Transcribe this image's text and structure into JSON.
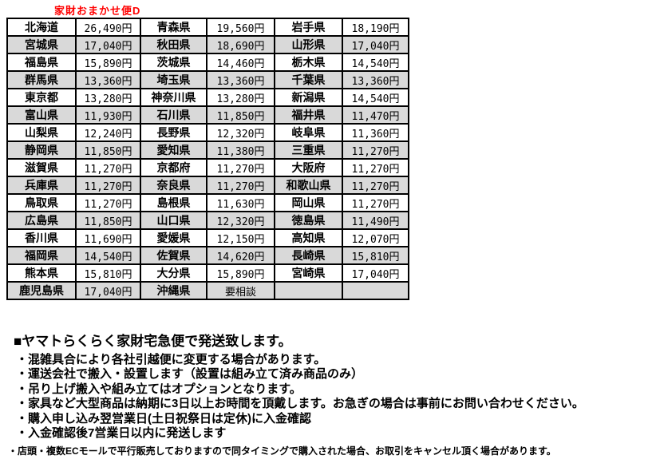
{
  "title": "家財おまかせ便D",
  "table": {
    "rows": [
      [
        "北海道",
        "26,490円",
        "青森県",
        "19,560円",
        "岩手県",
        "18,190円"
      ],
      [
        "宮城県",
        "17,040円",
        "秋田県",
        "18,690円",
        "山形県",
        "17,040円"
      ],
      [
        "福島県",
        "15,890円",
        "茨城県",
        "14,460円",
        "栃木県",
        "14,540円"
      ],
      [
        "群馬県",
        "13,360円",
        "埼玉県",
        "13,360円",
        "千葉県",
        "13,360円"
      ],
      [
        "東京都",
        "13,280円",
        "神奈川県",
        "13,280円",
        "新潟県",
        "14,540円"
      ],
      [
        "富山県",
        "11,930円",
        "石川県",
        "11,850円",
        "福井県",
        "11,470円"
      ],
      [
        "山梨県",
        "12,240円",
        "長野県",
        "12,320円",
        "岐阜県",
        "11,360円"
      ],
      [
        "静岡県",
        "11,850円",
        "愛知県",
        "11,380円",
        "三重県",
        "11,270円"
      ],
      [
        "滋賀県",
        "11,270円",
        "京都府",
        "11,270円",
        "大阪府",
        "11,270円"
      ],
      [
        "兵庫県",
        "11,270円",
        "奈良県",
        "11,270円",
        "和歌山県",
        "11,270円"
      ],
      [
        "鳥取県",
        "11,270円",
        "島根県",
        "11,630円",
        "岡山県",
        "11,270円"
      ],
      [
        "広島県",
        "11,850円",
        "山口県",
        "12,320円",
        "徳島県",
        "11,490円"
      ],
      [
        "香川県",
        "11,690円",
        "愛媛県",
        "12,150円",
        "高知県",
        "12,070円"
      ],
      [
        "福岡県",
        "14,540円",
        "佐賀県",
        "14,620円",
        "長崎県",
        "15,810円"
      ],
      [
        "熊本県",
        "15,810円",
        "大分県",
        "15,890円",
        "宮崎県",
        "17,040円"
      ],
      [
        "鹿児島県",
        "17,040円",
        "沖縄県",
        "要相談",
        "",
        ""
      ]
    ]
  },
  "notes": {
    "heading": "■ヤマトらくらく家財宅急便で発送致します。",
    "bullets": [
      "・混雑具合により各社引越便に変更する場合があります。",
      "・運送会社で搬入・設置します（設置は組み立て済み商品のみ）",
      "・吊り上げ搬入や組み立てはオプションとなります。",
      "・家具など大型商品は納期に3日以上お時間を頂戴します。お急ぎの場合は事前にお問い合わせください。",
      "・購入申し込み翌営業日(土日祝祭日は定休)に入金確認",
      "・入金確認後7営業日以内に発送します"
    ],
    "fine_print": "・店頭・複数ECモールで平行販売しておりますので同タイミングで購入された場合、お取引をキャンセル頂く場合があります。"
  },
  "colors": {
    "accent_red": "#FF0000",
    "row_alt_gray": "#D9D9D9",
    "border_black": "#000000"
  }
}
